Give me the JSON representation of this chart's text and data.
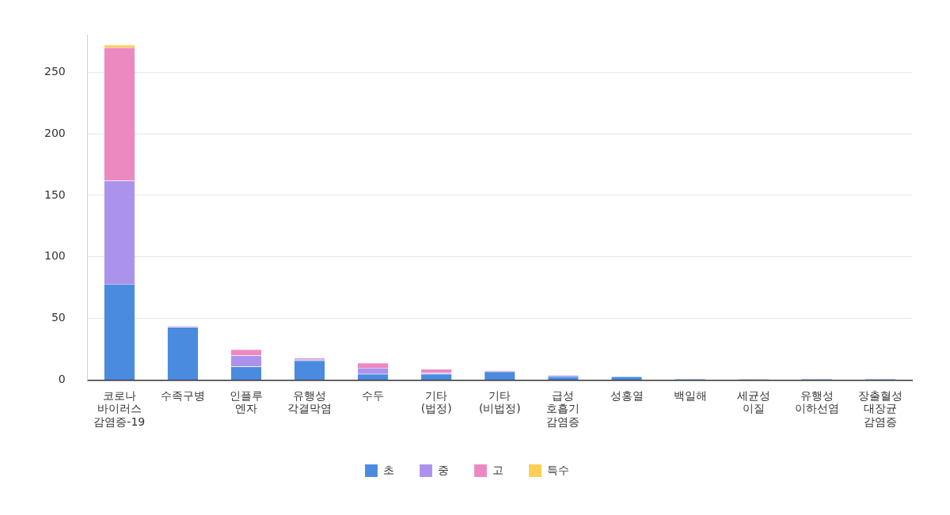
{
  "chart_data": {
    "type": "bar",
    "stacked": true,
    "categories": [
      "코로나\n바이러스\n감염증-19",
      "수족구병",
      "인플루\n엔자",
      "유행성\n각결막염",
      "수두",
      "기타\n(법정)",
      "기타\n(비법정)",
      "급성\n호흡기\n감염증",
      "성홍열",
      "백일해",
      "세균성\n이질",
      "유행성\n이하선염",
      "장출혈성\n대장균\n감염증"
    ],
    "series": [
      {
        "name": "초",
        "color": "#4a8bdf",
        "values": [
          78,
          43,
          11,
          16,
          5,
          5,
          7,
          3,
          3,
          1,
          0,
          1,
          1
        ]
      },
      {
        "name": "중",
        "color": "#ab93ec",
        "values": [
          84,
          1,
          9,
          1,
          5,
          1,
          0,
          1,
          0,
          0,
          1,
          0,
          0
        ]
      },
      {
        "name": "고",
        "color": "#ec89c1",
        "values": [
          108,
          0,
          5,
          1,
          4,
          3,
          1,
          0,
          0,
          0,
          0,
          0,
          0
        ]
      },
      {
        "name": "특수",
        "color": "#fdcf57",
        "values": [
          2,
          0,
          0,
          0,
          0,
          0,
          0,
          0,
          0,
          0,
          0,
          0,
          0
        ]
      }
    ],
    "ylim": [
      0,
      280
    ],
    "yticks": [
      0,
      50,
      100,
      150,
      200,
      250
    ],
    "grid": "y",
    "legend": "bottom"
  }
}
